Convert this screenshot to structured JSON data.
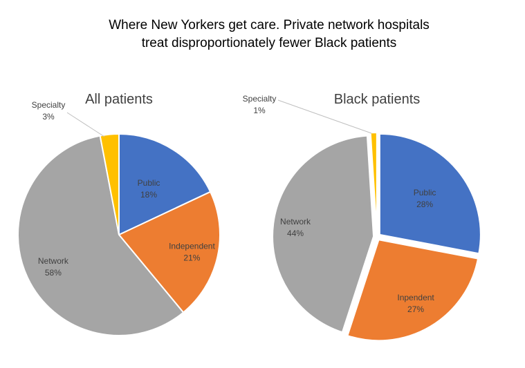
{
  "chart_data": {
    "type": "pie",
    "title": "Where New Yorkers get care. Private network hospitals treat disproportionately fewer Black patients",
    "title_lines": [
      "Where New Yorkers get care. Private network hospitals",
      "treat disproportionately fewer Black patients"
    ],
    "charts": [
      {
        "subtitle": "All patients",
        "slices": [
          {
            "label": "Public",
            "value": 18,
            "display": "18%",
            "color": "#4472C4"
          },
          {
            "label": "Independent",
            "value": 21,
            "display": "21%",
            "color": "#ED7D31"
          },
          {
            "label": "Network",
            "value": 58,
            "display": "58%",
            "color": "#A5A5A5"
          },
          {
            "label": "Specialty",
            "value": 3,
            "display": "3%",
            "color": "#FFC000"
          }
        ]
      },
      {
        "subtitle": "Black patients",
        "slices": [
          {
            "label": "Public",
            "value": 28,
            "display": "28%",
            "color": "#4472C4"
          },
          {
            "label": "Inpendent",
            "value": 27,
            "display": "27%",
            "color": "#ED7D31"
          },
          {
            "label": "Network",
            "value": 44,
            "display": "44%",
            "color": "#A5A5A5"
          },
          {
            "label": "Specialty",
            "value": 1,
            "display": "1%",
            "color": "#FFC000"
          }
        ]
      }
    ]
  }
}
